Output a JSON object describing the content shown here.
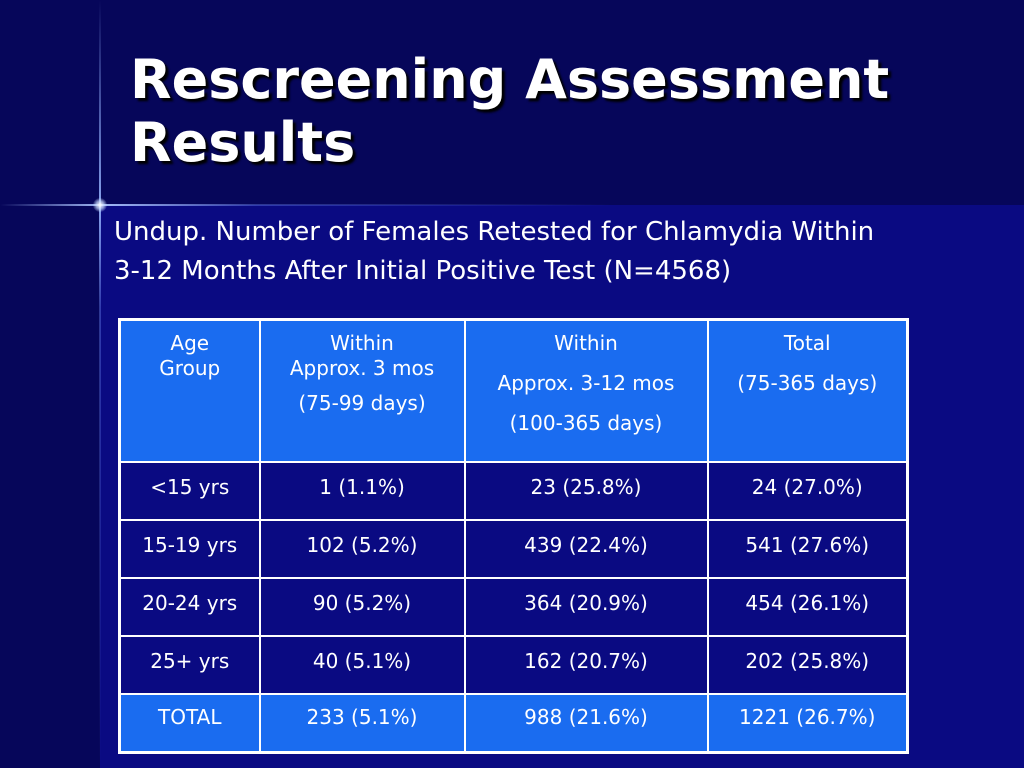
{
  "slide": {
    "title_line1": "Rescreening Assessment",
    "title_line2": "Results",
    "subtitle_line1": "Undup. Number of Females Retested for Chlamydia Within",
    "subtitle_line2": "3-12 Months After Initial Positive Test (N=4568)"
  },
  "table": {
    "headers": [
      {
        "line1": "Age",
        "line2": "Group"
      },
      {
        "line1": "Within",
        "line2": "Approx. 3 mos",
        "line3": "(75-99 days)"
      },
      {
        "line1": "Within",
        "line2": "Approx. 3-12 mos",
        "line3": "(100-365 days)"
      },
      {
        "line1": "Total",
        "line2": "(75-365 days)"
      }
    ],
    "rows": [
      [
        "<15 yrs",
        "1 (1.1%)",
        "23 (25.8%)",
        "24 (27.0%)"
      ],
      [
        "15-19 yrs",
        "102 (5.2%)",
        "439 (22.4%)",
        "541 (27.6%)"
      ],
      [
        "20-24 yrs",
        "90 (5.2%)",
        "364 (20.9%)",
        "454 (26.1%)"
      ],
      [
        "25+ yrs",
        "40 (5.1%)",
        "162 (20.7%)",
        "202 (25.8%)"
      ]
    ],
    "total_row": [
      "TOTAL",
      "233 (5.1%)",
      "988 (21.6%)",
      "1221 (26.7%)"
    ]
  },
  "colors": {
    "background": "#0a0a82",
    "band": "#06065a",
    "header_fill": "#1a6cf0",
    "text": "#ffffff"
  }
}
